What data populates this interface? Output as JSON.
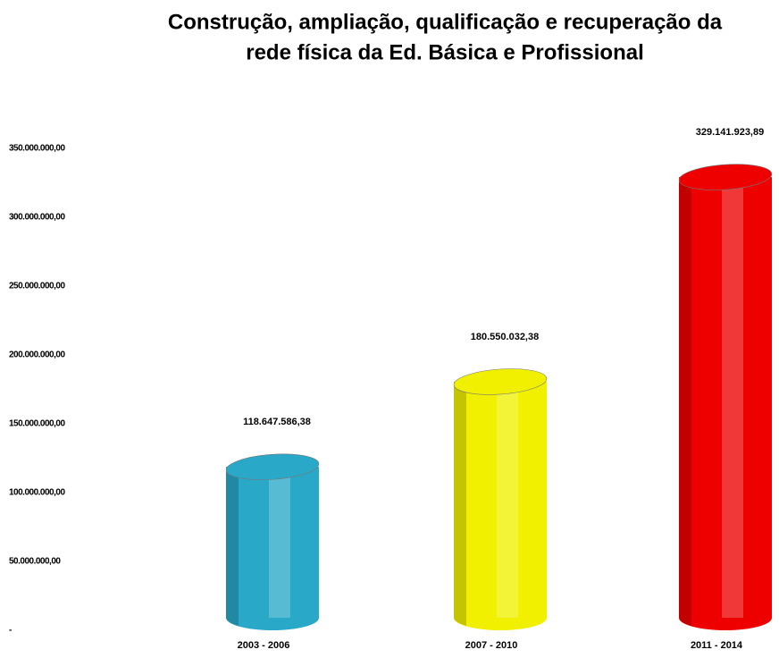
{
  "chart_data": {
    "type": "bar",
    "title": [
      "Construção, ampliação, qualificação e recuperação da",
      "rede física da Ed. Básica e Profissional"
    ],
    "categories": [
      "2003 - 2006",
      "2007 - 2010",
      "2011 - 2014"
    ],
    "values": [
      118647586.38,
      180550032.38,
      329141923.89
    ],
    "value_labels": [
      "118.647.586,38",
      "180.550.032,38",
      "329.141.923,89"
    ],
    "colors": [
      "#2aa8c8",
      "#f0f000",
      "#ee0000"
    ],
    "ylim": [
      0,
      350000000
    ],
    "yticks": [
      {
        "value": 0,
        "label": "-"
      },
      {
        "value": 50000000,
        "label": "50.000.000,00"
      },
      {
        "value": 100000000,
        "label": "100.000.000,00"
      },
      {
        "value": 150000000,
        "label": "150.000.000,00"
      },
      {
        "value": 200000000,
        "label": "200.000.000,00"
      },
      {
        "value": 250000000,
        "label": "250.000.000,00"
      },
      {
        "value": 300000000,
        "label": "300.000.000,00"
      },
      {
        "value": 350000000,
        "label": "350.000.000,00"
      }
    ],
    "grid": false
  }
}
